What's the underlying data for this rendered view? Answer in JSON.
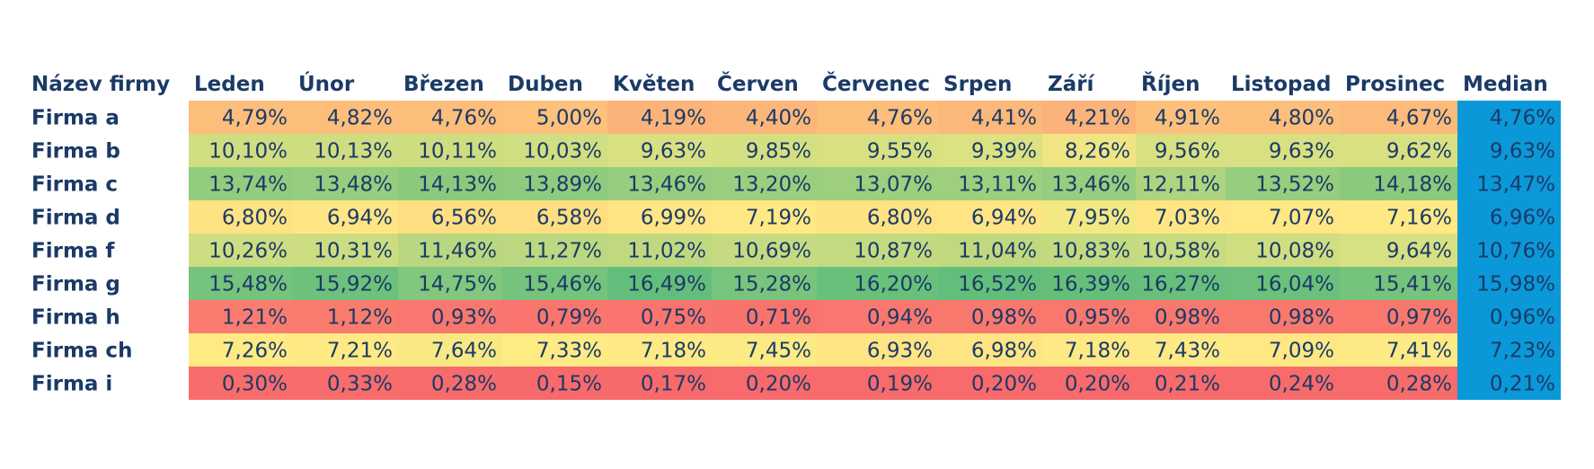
{
  "chart_data": {
    "type": "heatmap",
    "row_header": "Název firmy",
    "columns": [
      "Leden",
      "Únor",
      "Březen",
      "Duben",
      "Květen",
      "Červen",
      "Červenec",
      "Srpen",
      "Září",
      "Říjen",
      "Listopad",
      "Prosinec",
      "Median"
    ],
    "rows": [
      {
        "name": "Firma a",
        "values": [
          4.79,
          4.82,
          4.76,
          5.0,
          4.19,
          4.4,
          4.76,
          4.41,
          4.21,
          4.91,
          4.8,
          4.67
        ],
        "median": 4.76
      },
      {
        "name": "Firma b",
        "values": [
          10.1,
          10.13,
          10.11,
          10.03,
          9.63,
          9.85,
          9.55,
          9.39,
          8.26,
          9.56,
          9.63,
          9.62
        ],
        "median": 9.63
      },
      {
        "name": "Firma c",
        "values": [
          13.74,
          13.48,
          14.13,
          13.89,
          13.46,
          13.2,
          13.07,
          13.11,
          13.46,
          12.11,
          13.52,
          14.18
        ],
        "median": 13.47
      },
      {
        "name": "Firma d",
        "values": [
          6.8,
          6.94,
          6.56,
          6.58,
          6.99,
          7.19,
          6.8,
          6.94,
          7.95,
          7.03,
          7.07,
          7.16
        ],
        "median": 6.96
      },
      {
        "name": "Firma f",
        "values": [
          10.26,
          10.31,
          11.46,
          11.27,
          11.02,
          10.69,
          10.87,
          11.04,
          10.83,
          10.58,
          10.08,
          9.64
        ],
        "median": 10.76
      },
      {
        "name": "Firma g",
        "values": [
          15.48,
          15.92,
          14.75,
          15.46,
          16.49,
          15.28,
          16.2,
          16.52,
          16.39,
          16.27,
          16.04,
          15.41
        ],
        "median": 15.98
      },
      {
        "name": "Firma h",
        "values": [
          1.21,
          1.12,
          0.93,
          0.79,
          0.75,
          0.71,
          0.94,
          0.98,
          0.95,
          0.98,
          0.98,
          0.97
        ],
        "median": 0.96
      },
      {
        "name": "Firma ch",
        "values": [
          7.26,
          7.21,
          7.64,
          7.33,
          7.18,
          7.45,
          6.93,
          6.98,
          7.18,
          7.43,
          7.09,
          7.41
        ],
        "median": 7.23
      },
      {
        "name": "Firma i",
        "values": [
          0.3,
          0.33,
          0.28,
          0.15,
          0.17,
          0.2,
          0.19,
          0.2,
          0.2,
          0.21,
          0.24,
          0.28
        ],
        "median": 0.21
      }
    ],
    "value_format": "percent, 2 decimals, decimal comma",
    "color_scale": {
      "low": "#f8696b",
      "mid": "#ffeb84",
      "high": "#63be7b"
    },
    "median_column_color": "#0a98d8"
  },
  "colors": {
    "text": "#1b3a66",
    "background": "#ffffff"
  }
}
